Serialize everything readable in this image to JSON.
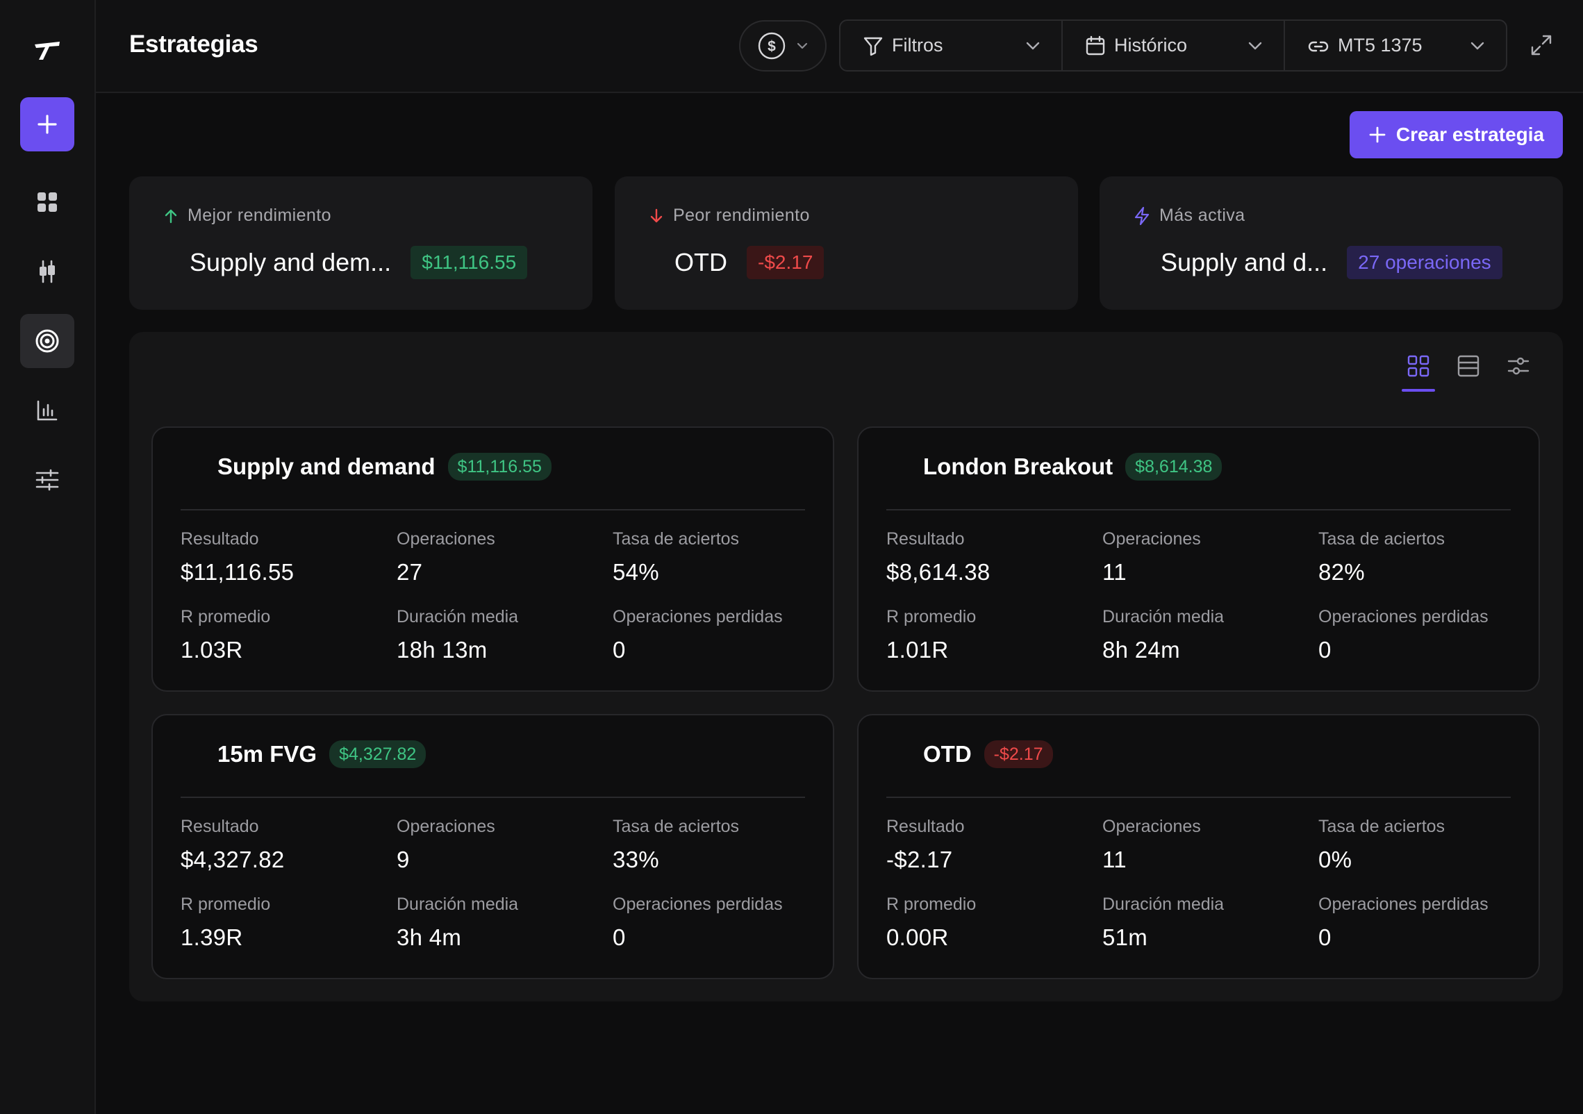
{
  "app": {
    "page_title": "Estrategias"
  },
  "topbar": {
    "currency_symbol": "$",
    "filters_label": "Filtros",
    "period_label": "Histórico",
    "account_label": "MT5 1375"
  },
  "actions": {
    "create_label": "Crear estrategia"
  },
  "highlights": [
    {
      "heading": "Mejor rendimiento",
      "name": "Supply and dem...",
      "badge": "$11,116.55",
      "tone": "green",
      "icon": "arrow-up-icon"
    },
    {
      "heading": "Peor rendimiento",
      "name": "OTD",
      "badge": "-$2.17",
      "tone": "red",
      "icon": "arrow-down-icon"
    },
    {
      "heading": "Más activa",
      "name": "Supply and d...",
      "badge": "27 operaciones",
      "tone": "purple",
      "icon": "lightning-icon"
    }
  ],
  "labels": {
    "result": "Resultado",
    "trades": "Operaciones",
    "win_rate": "Tasa de aciertos",
    "avg_r": "R promedio",
    "avg_duration": "Duración media",
    "lost_trades": "Operaciones perdidas"
  },
  "strategies": [
    {
      "name": "Supply and demand",
      "badge": "$11,116.55",
      "tone": "green",
      "result": "$11,116.55",
      "trades": "27",
      "win_rate": "54%",
      "avg_r": "1.03R",
      "avg_duration": "18h 13m",
      "lost_trades": "0"
    },
    {
      "name": "London Breakout",
      "badge": "$8,614.38",
      "tone": "green",
      "result": "$8,614.38",
      "trades": "11",
      "win_rate": "82%",
      "avg_r": "1.01R",
      "avg_duration": "8h 24m",
      "lost_trades": "0"
    },
    {
      "name": "15m FVG",
      "badge": "$4,327.82",
      "tone": "green",
      "result": "$4,327.82",
      "trades": "9",
      "win_rate": "33%",
      "avg_r": "1.39R",
      "avg_duration": "3h 4m",
      "lost_trades": "0"
    },
    {
      "name": "OTD",
      "badge": "-$2.17",
      "tone": "red",
      "result": "-$2.17",
      "trades": "11",
      "win_rate": "0%",
      "avg_r": "0.00R",
      "avg_duration": "51m",
      "lost_trades": "0"
    }
  ],
  "colors": {
    "accent": "#6b4ef0",
    "positive": "#3fc584",
    "negative": "#ef4a4a",
    "background": "#0d0d0e"
  },
  "icons": {
    "sidebar": [
      "logo-icon",
      "plus-icon",
      "grid-icon",
      "candlestick-icon",
      "target-icon",
      "bar-chart-icon",
      "sliders-icon"
    ],
    "view": [
      "grid-view-icon",
      "list-view-icon",
      "settings-view-icon"
    ]
  }
}
